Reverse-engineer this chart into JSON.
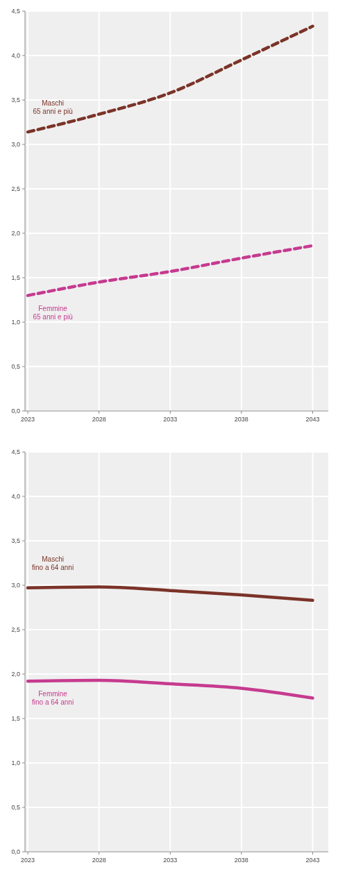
{
  "chart_data": [
    {
      "type": "line",
      "x": [
        2023,
        2028,
        2033,
        2038,
        2043
      ],
      "line_style": "solid",
      "grid": true,
      "xlim": [
        2022.8,
        2044.1
      ],
      "xticks": [
        2023,
        2028,
        2033,
        2038,
        2043
      ],
      "ylim": [
        0,
        4.5
      ],
      "yticks": [
        {
          "value": 0,
          "label": "0,0"
        },
        {
          "value": 0.5,
          "label": "0,5"
        },
        {
          "value": 1,
          "label": "1,0"
        },
        {
          "value": 1.5,
          "label": "1,5"
        },
        {
          "value": 2,
          "label": "2,0"
        },
        {
          "value": 2.5,
          "label": "2,5"
        },
        {
          "value": 3,
          "label": "3,0"
        },
        {
          "value": 3.5,
          "label": "3,5"
        },
        {
          "value": 4,
          "label": "4,0"
        },
        {
          "value": 4.5,
          "label": "4,5"
        }
      ],
      "series": [
        {
          "name": "Maschi fino a 64 anni",
          "color": "#7b3328",
          "values": [
            2.97,
            2.98,
            2.94,
            2.89,
            2.83
          ]
        },
        {
          "name": "Femmine fino a 64 anni",
          "color": "#c63a8f",
          "values": [
            1.92,
            1.93,
            1.89,
            1.84,
            1.73
          ]
        }
      ]
    },
    {
      "type": "line",
      "x": [
        2023,
        2028,
        2033,
        2038,
        2043
      ],
      "line_style": "dashed",
      "grid": true,
      "xlim": [
        2022.8,
        2044.1
      ],
      "xticks": [
        2023,
        2028,
        2033,
        2038,
        2043
      ],
      "ylim": [
        0,
        4.5
      ],
      "yticks": [
        {
          "value": 0,
          "label": "0,0"
        },
        {
          "value": 0.5,
          "label": "0,5"
        },
        {
          "value": 1,
          "label": "1,0"
        },
        {
          "value": 1.5,
          "label": "1,5"
        },
        {
          "value": 2,
          "label": "2,0"
        },
        {
          "value": 2.5,
          "label": "2,5"
        },
        {
          "value": 3,
          "label": "3,0"
        },
        {
          "value": 3.5,
          "label": "3,5"
        },
        {
          "value": 4,
          "label": "4,0"
        },
        {
          "value": 4.5,
          "label": "4,5"
        }
      ],
      "series": [
        {
          "name": "Maschi 65 anni e più",
          "color": "#7b3328",
          "values": [
            3.14,
            3.34,
            3.58,
            3.95,
            4.33
          ]
        },
        {
          "name": "Femmine 65 anni e più",
          "color": "#c63a8f",
          "values": [
            1.3,
            1.45,
            1.57,
            1.72,
            1.86
          ]
        }
      ]
    }
  ]
}
